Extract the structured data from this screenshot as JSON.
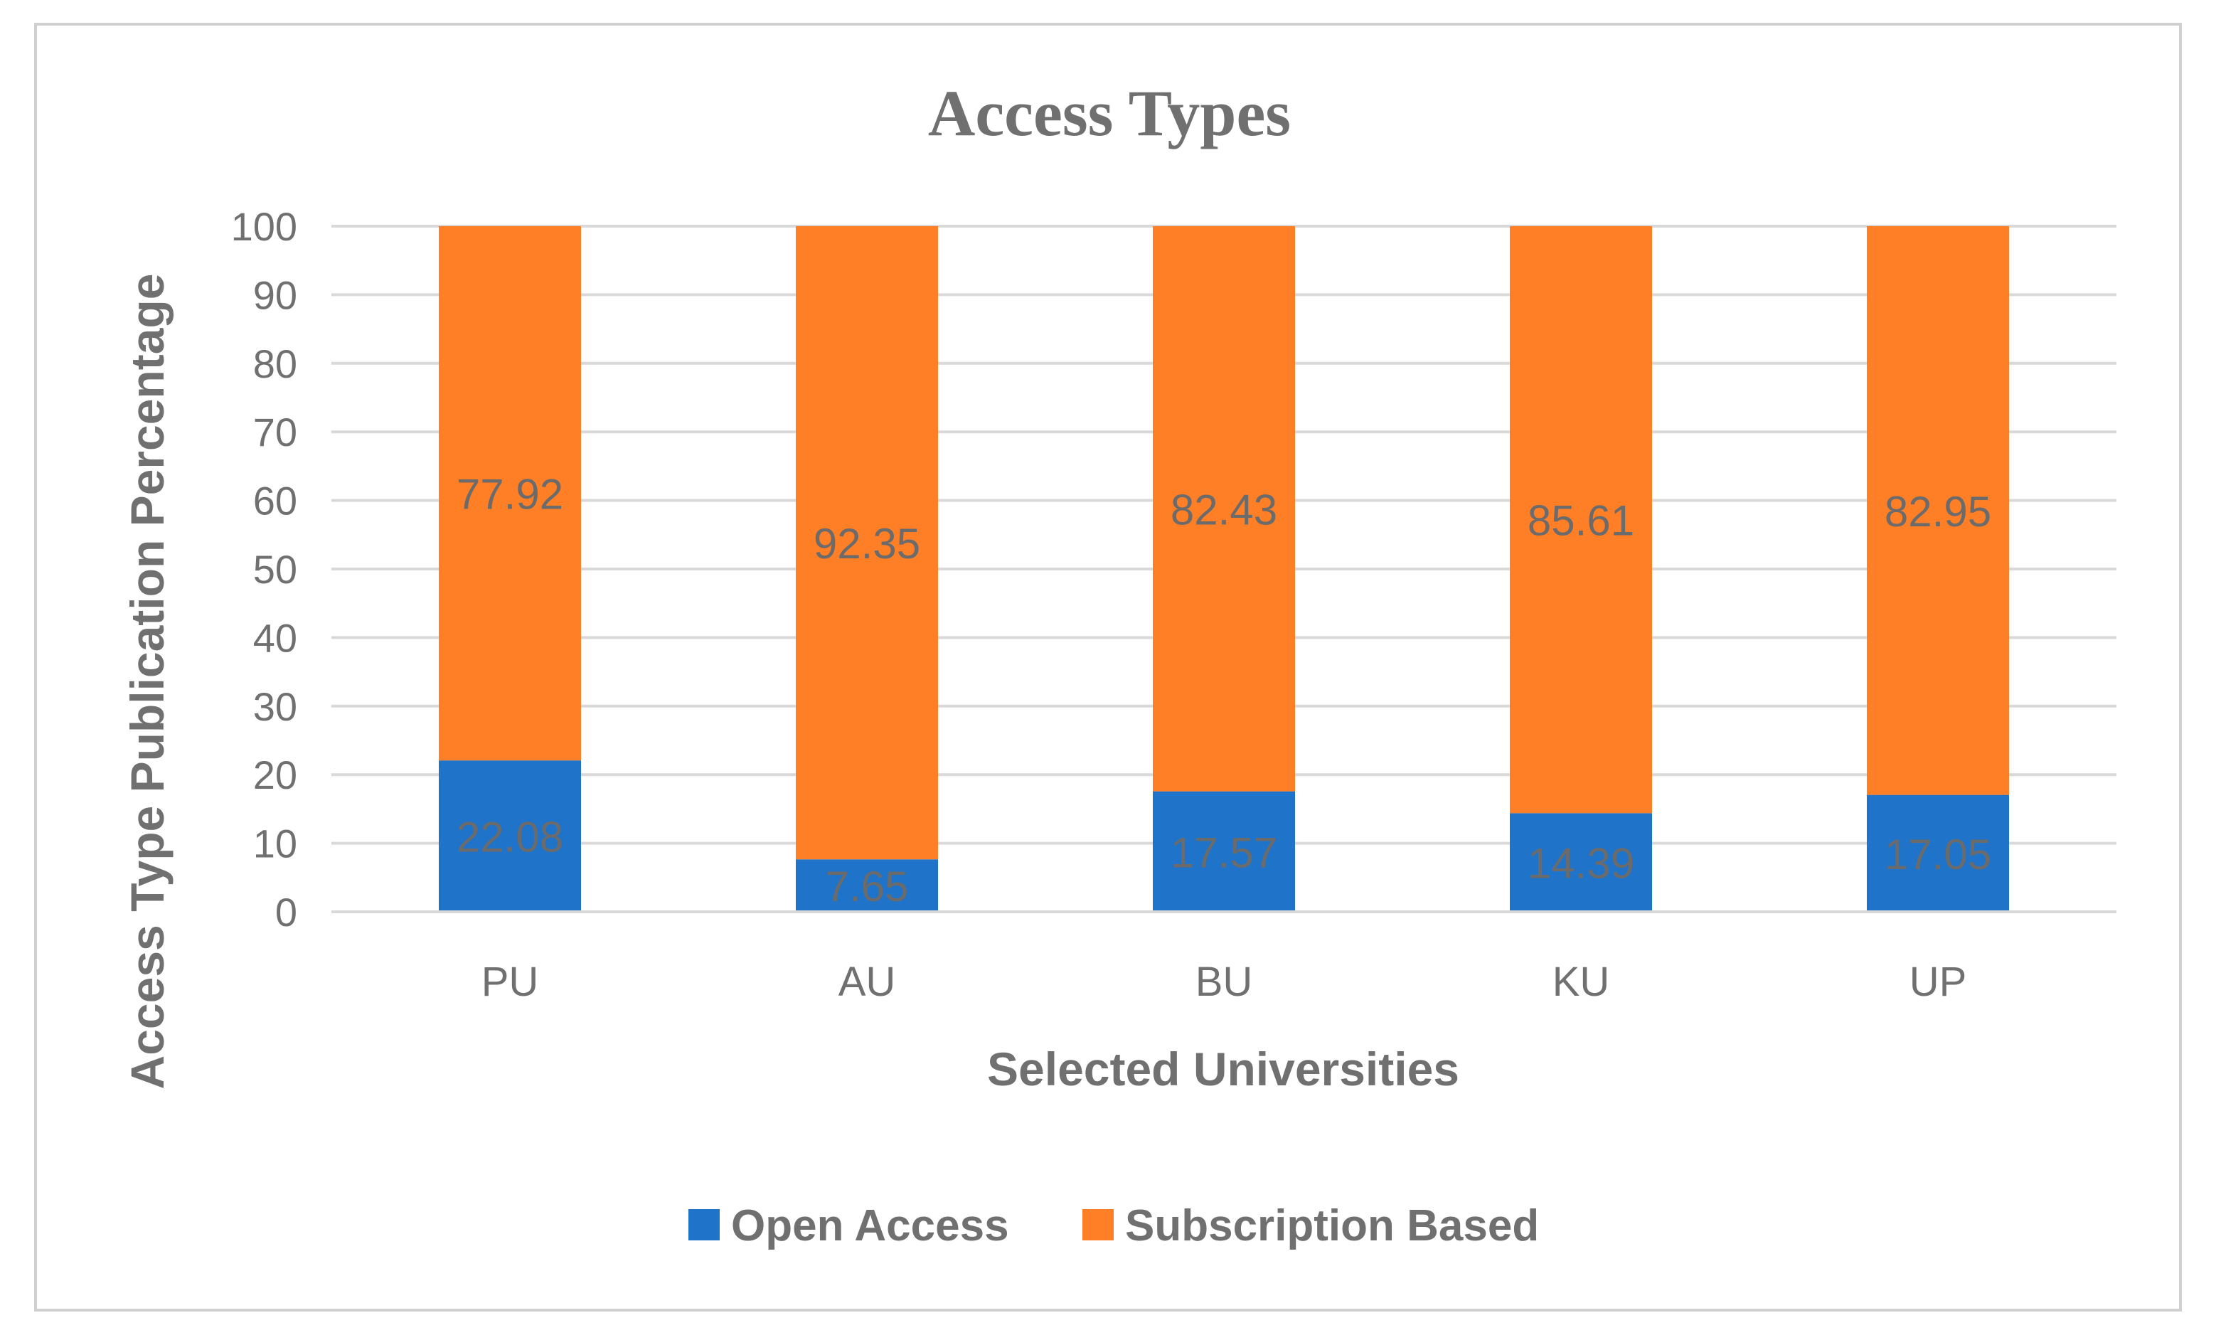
{
  "colors": {
    "open_access": "#1f73c8",
    "subscription": "#ff7f27",
    "grid": "#d9d9d9",
    "text": "#707070",
    "label_text": "#6b6b6b",
    "border": "#d0d0d0"
  },
  "chart_data": {
    "type": "bar",
    "stacked": true,
    "title": "Access Types",
    "xlabel": "Selected Universities",
    "ylabel": "Access Type Publication Percentage",
    "categories": [
      "PU",
      "AU",
      "BU",
      "KU",
      "UP"
    ],
    "series": [
      {
        "name": "Open Access",
        "values": [
          22.08,
          7.65,
          17.57,
          14.39,
          17.05
        ],
        "labels": [
          "22.08",
          "7.65",
          "17.57",
          "14.39",
          "17.05"
        ]
      },
      {
        "name": "Subscription Based",
        "values": [
          77.92,
          92.35,
          82.43,
          85.61,
          82.95
        ],
        "labels": [
          "77.92",
          "92.35",
          "82.43",
          "85.61",
          "82.95"
        ]
      }
    ],
    "ylim": [
      0,
      100
    ],
    "yticks": [
      "0",
      "10",
      "20",
      "30",
      "40",
      "50",
      "60",
      "70",
      "80",
      "90",
      "100"
    ],
    "grid": true,
    "legend_position": "bottom"
  }
}
